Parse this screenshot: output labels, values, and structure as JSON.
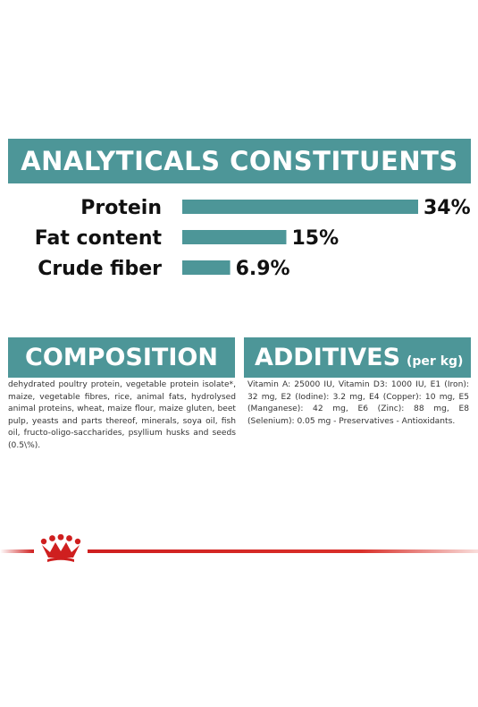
{
  "analytical": {
    "title": "ANALYTICALS CONSTITUENTS"
  },
  "chart_data": {
    "type": "bar",
    "orientation": "horizontal",
    "title": "ANALYTICALS CONSTITUENTS",
    "categories": [
      "Protein",
      "Fat content",
      "Crude fiber"
    ],
    "values": [
      34,
      15,
      6.9
    ],
    "data_labels": [
      "34%",
      "15%",
      "6.9%"
    ],
    "unit": "%",
    "bar_color": "#4d9698",
    "grid": false
  },
  "composition": {
    "title": "COMPOSITION",
    "text": "dehydrated poultry protein, vegetable protein isolate*, maize, vegetable fibres, rice, animal fats, hydrolysed animal proteins, wheat, maize flour, maize gluten, beet pulp, yeasts and parts thereof, minerals, soya oil, fish oil, fructo-oligo-saccharides, psyllium husks and seeds (0.5\\%)."
  },
  "additives": {
    "title": "ADDITIVES",
    "subtitle": "(per kg)",
    "text": "Vitamin A: 25000 IU, Vitamin D3: 1000 IU, E1 (Iron): 32 mg, E2 (Iodine): 3.2 mg, E4 (Copper): 10 mg, E5 (Manganese): 42 mg, E6 (Zinc): 88 mg, E8 (Selenium): 0.05 mg - Preservatives - Antioxidants."
  },
  "colors": {
    "accent": "#4d9698",
    "brand_red": "#cf1f1f"
  },
  "brand": {
    "logo_icon": "royal-canin-crown-icon"
  }
}
